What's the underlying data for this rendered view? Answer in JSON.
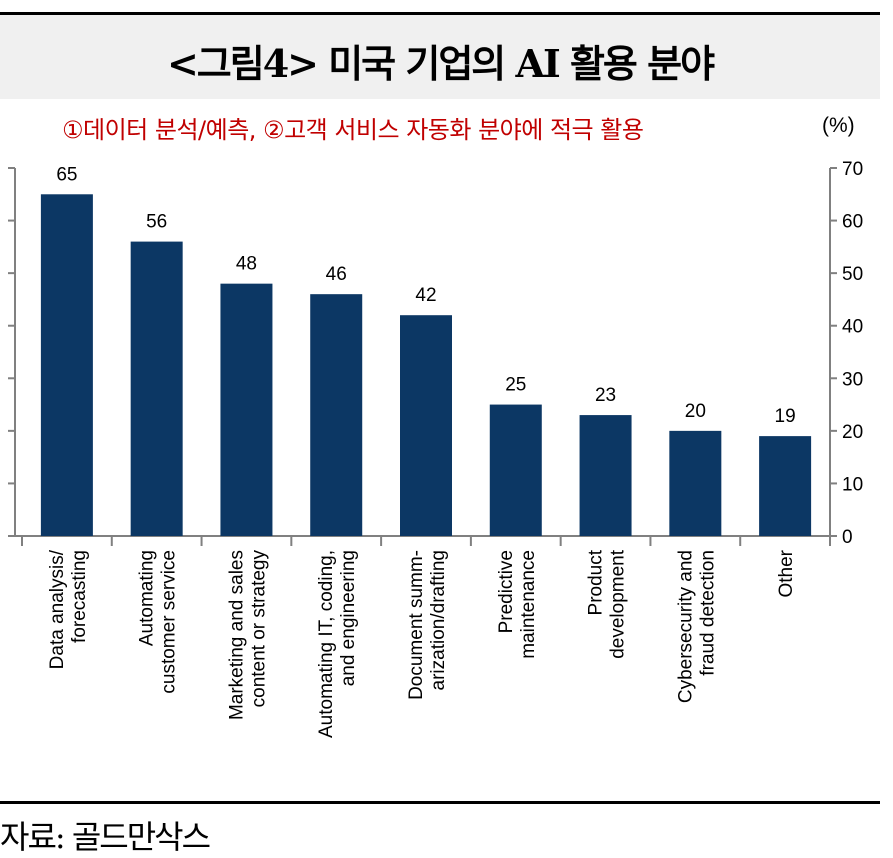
{
  "header": {
    "title": "<그림4> 미국 기업의 AI 활용 분야",
    "subtitle": "①데이터 분석/예측, ②고객 서비스 자동화 분야에 적극 활용",
    "unit": "(%)"
  },
  "footer": {
    "source": "자료: 골드만삭스"
  },
  "colors": {
    "bar": "#0c3764",
    "subtitle": "#c00000"
  },
  "chart_data": {
    "type": "bar",
    "title": "<그림4> 미국 기업의 AI 활용 분야",
    "subtitle": "①데이터 분석/예측, ②고객 서비스 자동화 분야에 적극 활용",
    "ylabel": "(%)",
    "ylim": [
      0,
      70
    ],
    "yticks": [
      0,
      10,
      20,
      30,
      40,
      50,
      60,
      70
    ],
    "categories": [
      [
        "Data analysis/",
        "forecasting"
      ],
      [
        "Automating",
        "customer service"
      ],
      [
        "Marketing and sales",
        "content or strategy"
      ],
      [
        "Automating IT, coding,",
        "and engineering"
      ],
      [
        "Document summ-",
        "arization/drafting"
      ],
      [
        "Predictive",
        "maintenance"
      ],
      [
        "Product",
        "development"
      ],
      [
        "Cybersecurity and",
        "fraud detection"
      ],
      [
        "Other"
      ]
    ],
    "values": [
      65,
      56,
      48,
      46,
      42,
      25,
      23,
      20,
      19
    ],
    "grid": false,
    "legend": "none"
  }
}
